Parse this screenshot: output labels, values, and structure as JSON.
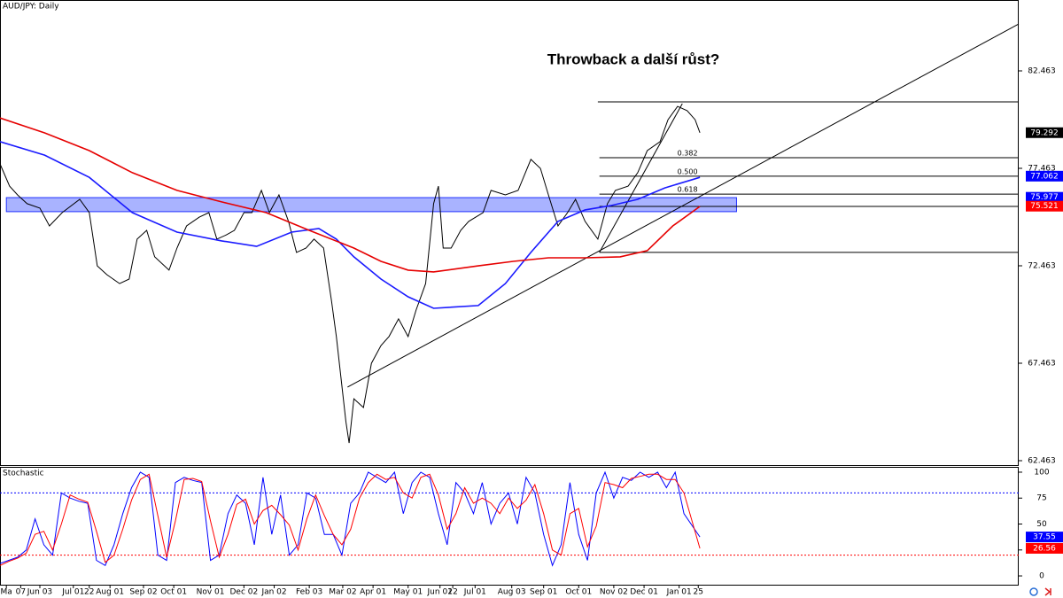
{
  "chart_data": [
    {
      "type": "line",
      "title": "AUD/JPY: Daily",
      "annotation": "Throwback a další růst?",
      "xlim": [
        0,
        639
      ],
      "ylim": [
        62.236,
        86.099
      ],
      "yticks": [
        62.463,
        67.463,
        72.463,
        77.463,
        82.463
      ],
      "xticks": [
        {
          "value": 4,
          "label": "Ma"
        },
        {
          "value": 13,
          "label": "07"
        },
        {
          "value": 25,
          "label": "Jun 03"
        },
        {
          "value": 46,
          "label": "Jul 01"
        },
        {
          "value": 56,
          "label": "22"
        },
        {
          "value": 69,
          "label": "Aug 01"
        },
        {
          "value": 90,
          "label": "Sep 02"
        },
        {
          "value": 109,
          "label": "Oct 01"
        },
        {
          "value": 132,
          "label": "Nov 01"
        },
        {
          "value": 153,
          "label": "Dec 02"
        },
        {
          "value": 172,
          "label": "Jan 02"
        },
        {
          "value": 194,
          "label": "Feb 03"
        },
        {
          "value": 215,
          "label": "Mar 02"
        },
        {
          "value": 234,
          "label": "Apr 01"
        },
        {
          "value": 256,
          "label": "May 01"
        },
        {
          "value": 276,
          "label": "Jun 01"
        },
        {
          "value": 284,
          "label": "22"
        },
        {
          "value": 298,
          "label": "Jul 01"
        },
        {
          "value": 321,
          "label": "Aug 03"
        },
        {
          "value": 341,
          "label": "Sep 01"
        },
        {
          "value": 363,
          "label": "Oct 01"
        },
        {
          "value": 385,
          "label": "Nov 02"
        },
        {
          "value": 404,
          "label": "Dec 01"
        },
        {
          "value": 426,
          "label": "Jan 01"
        },
        {
          "value": 438,
          "label": "25"
        }
      ],
      "series": [
        {
          "color": "#000000",
          "width": 1,
          "x": [
            0,
            6,
            11,
            17,
            25,
            31,
            39,
            50,
            56,
            61,
            67,
            75,
            81,
            86,
            92,
            97,
            106,
            111,
            117,
            125,
            131,
            136,
            142,
            147,
            153,
            158,
            164,
            169,
            175,
            181,
            186,
            192,
            197,
            203,
            208,
            211,
            217,
            219,
            222,
            228,
            233,
            239,
            244,
            250,
            256,
            261,
            267,
            272,
            275,
            278,
            283,
            289,
            294,
            303,
            308,
            317,
            325,
            333,
            339,
            344,
            350,
            356,
            361,
            367,
            375,
            381,
            386,
            394,
            400,
            406,
            414,
            419,
            425,
            431,
            436,
            439
          ],
          "values": [
            77.69,
            76.55,
            76.1,
            75.65,
            75.42,
            74.51,
            75.19,
            75.87,
            75.19,
            72.46,
            72.01,
            71.55,
            71.78,
            73.83,
            74.28,
            72.92,
            72.24,
            73.37,
            74.51,
            74.96,
            75.19,
            73.83,
            74.05,
            74.28,
            75.19,
            75.19,
            76.33,
            75.19,
            76.1,
            74.74,
            73.15,
            73.37,
            73.83,
            73.37,
            70.64,
            68.83,
            64.46,
            63.37,
            65.64,
            65.19,
            67.46,
            68.37,
            68.83,
            69.74,
            68.83,
            70.19,
            71.55,
            75.65,
            76.55,
            73.37,
            73.37,
            74.28,
            74.74,
            75.19,
            76.33,
            76.1,
            76.33,
            77.92,
            77.46,
            76.1,
            74.51,
            75.19,
            75.87,
            74.74,
            73.83,
            75.65,
            76.33,
            76.55,
            77.24,
            78.37,
            78.83,
            79.96,
            80.64,
            80.42,
            79.96,
            79.29
          ]
        },
        {
          "color": "#1a1aff",
          "width": 1.6,
          "x": [
            0,
            28,
            56,
            83,
            111,
            139,
            161,
            183,
            200,
            211,
            222,
            239,
            256,
            272,
            300,
            317,
            333,
            350,
            367,
            383,
            400,
            417,
            439
          ],
          "values": [
            78.83,
            78.14,
            77.0,
            75.19,
            74.19,
            73.74,
            73.46,
            74.19,
            74.37,
            73.83,
            72.92,
            71.78,
            70.87,
            70.28,
            70.42,
            71.55,
            73.15,
            74.74,
            75.33,
            75.55,
            75.87,
            76.46,
            77.0
          ]
        },
        {
          "color": "#e60000",
          "width": 1.6,
          "x": [
            0,
            28,
            56,
            83,
            111,
            139,
            167,
            194,
            222,
            239,
            256,
            272,
            300,
            322,
            344,
            367,
            389,
            406,
            422,
            439
          ],
          "values": [
            80.05,
            79.28,
            78.37,
            77.24,
            76.33,
            75.74,
            75.19,
            74.28,
            73.37,
            72.69,
            72.24,
            72.15,
            72.46,
            72.69,
            72.87,
            72.87,
            72.92,
            73.24,
            74.51,
            75.51
          ]
        }
      ],
      "zone": {
        "y": [
          75.24,
          75.96
        ],
        "x": [
          4,
          462
        ],
        "color": "#7080ff"
      },
      "levels": [
        {
          "value": 80.87,
          "x": 375
        },
        {
          "value": 78.01,
          "x": 376,
          "label": "0.382"
        },
        {
          "value": 77.06,
          "x": 376,
          "label": "0.500"
        },
        {
          "value": 76.14,
          "x": 376,
          "label": "0.618"
        },
        {
          "value": 75.51,
          "x": 376
        },
        {
          "value": 73.15,
          "x": 376
        }
      ],
      "trendlines": [
        {
          "x": [
            218,
            639
          ],
          "y": [
            66.24,
            84.87
          ]
        },
        {
          "x": [
            376,
            428
          ],
          "y": [
            73.15,
            80.78
          ]
        }
      ],
      "price_labels": [
        {
          "value": 79.292,
          "color": "#000000"
        },
        {
          "value": 77.062,
          "color": "#0000ff"
        },
        {
          "value": 75.977,
          "color": "#0000ff"
        },
        {
          "value": 75.521,
          "color": "#ff0000"
        }
      ]
    },
    {
      "type": "line",
      "title": "Stochastic",
      "xlim": [
        0,
        639
      ],
      "ylim": [
        -8.5,
        105.1
      ],
      "yticks": [
        0,
        25,
        50,
        75,
        100
      ],
      "levels": [
        {
          "value": 80,
          "color": "#0000ff"
        },
        {
          "value": 20,
          "color": "#ff0000"
        }
      ],
      "x": [
        0,
        5.5,
        11,
        16.5,
        22,
        27.5,
        33,
        38.5,
        44,
        49.5,
        55,
        60.5,
        66,
        71.5,
        77,
        82.5,
        88,
        93.5,
        99,
        104.5,
        110,
        115.5,
        121,
        126.5,
        132,
        137.5,
        143,
        148.5,
        154,
        159.5,
        165,
        170.5,
        176,
        181.5,
        187,
        192.5,
        198,
        203.5,
        209,
        214.5,
        220,
        225.5,
        231,
        236.5,
        242,
        247.5,
        253,
        258.5,
        264,
        269.5,
        275,
        280.5,
        286,
        291.5,
        297,
        302.5,
        308,
        313.5,
        319,
        324.5,
        330,
        335.5,
        341,
        346.5,
        352,
        357.5,
        363,
        368.5,
        374,
        379.5,
        385,
        390.5,
        396,
        401.5,
        407,
        412.5,
        418,
        423.5,
        429,
        439
      ],
      "series": [
        {
          "color": "#0000ff",
          "values": [
            12,
            15,
            18,
            25,
            55,
            30,
            20,
            80,
            75,
            72,
            70,
            15,
            10,
            30,
            60,
            85,
            100,
            95,
            20,
            15,
            90,
            95,
            92,
            90,
            15,
            20,
            60,
            78,
            70,
            30,
            95,
            40,
            78,
            20,
            30,
            80,
            75,
            40,
            40,
            20,
            70,
            80,
            100,
            95,
            90,
            100,
            60,
            90,
            100,
            95,
            60,
            30,
            90,
            80,
            60,
            90,
            50,
            70,
            80,
            50,
            95,
            80,
            40,
            10,
            30,
            90,
            40,
            15,
            80,
            100,
            75,
            95,
            92,
            100,
            95,
            100,
            85,
            100,
            60,
            37.55
          ]
        },
        {
          "color": "#ff0000",
          "values": [
            10,
            14,
            17,
            22,
            40,
            43,
            25,
            50,
            78,
            74,
            71,
            43,
            13,
            20,
            45,
            73,
            93,
            98,
            58,
            18,
            53,
            93,
            94,
            91,
            53,
            18,
            40,
            69,
            74,
            50,
            63,
            68,
            59,
            49,
            25,
            55,
            78,
            58,
            40,
            30,
            45,
            75,
            90,
            98,
            93,
            95,
            80,
            75,
            95,
            98,
            78,
            45,
            60,
            85,
            70,
            75,
            70,
            60,
            75,
            65,
            73,
            88,
            60,
            25,
            20,
            60,
            65,
            28,
            48,
            90,
            88,
            85,
            94,
            96,
            98,
            98,
            93,
            93,
            80,
            26.56
          ]
        }
      ]
    }
  ]
}
